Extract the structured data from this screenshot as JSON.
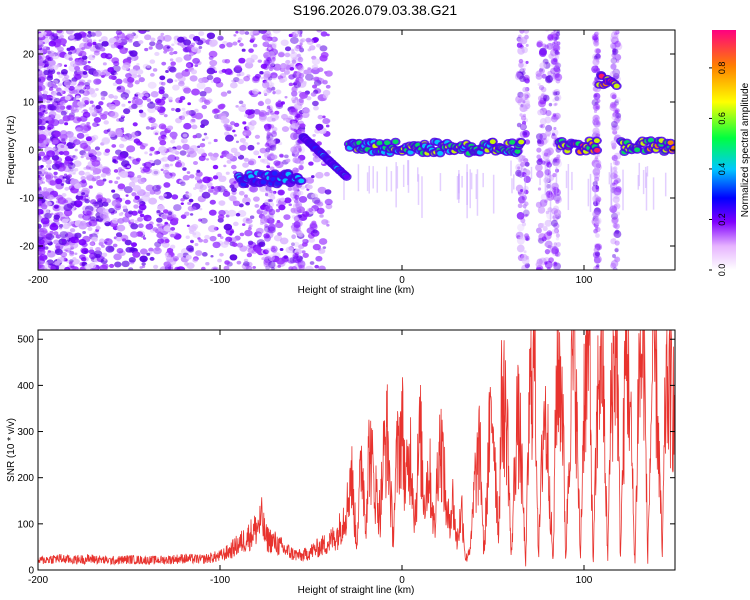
{
  "title": "S196.2026.079.03.38.G21",
  "chart_data": [
    {
      "type": "heatmap",
      "xlabel": "Height of straight line (km)",
      "ylabel": "Frequency (Hz)",
      "xlim": [
        -200,
        150
      ],
      "ylim": [
        -25,
        25
      ],
      "xticks": [
        -200,
        -100,
        0,
        100
      ],
      "yticks": [
        -20,
        -10,
        0,
        10,
        20
      ],
      "colorbar": {
        "label": "Normalized spectral amplitude",
        "range": [
          0,
          0.95
        ],
        "ticks": [
          0,
          0.2,
          0.4,
          0.6,
          0.8
        ]
      },
      "features": [
        {
          "x_start": -90,
          "x_end": -55,
          "freq": -6,
          "amplitude": 0.4
        },
        {
          "x_start": -55,
          "x_end": -30,
          "freq": 3,
          "amplitude": 0.35
        },
        {
          "x_start": -30,
          "x_end": 66,
          "freq": 0.5,
          "amplitude": 0.6
        },
        {
          "x_start": 86,
          "x_end": 108,
          "freq": 0.8,
          "amplitude": 0.9
        },
        {
          "x_start": 108,
          "x_end": 118,
          "freq": 14.5,
          "amplitude": 0.9
        },
        {
          "x_start": 120,
          "x_end": 150,
          "freq": 0.8,
          "amplitude": 0.8
        }
      ]
    },
    {
      "type": "line",
      "xlabel": "Height of straight line (km)",
      "ylabel": "SNR (10 * v/v)",
      "xlim": [
        -200,
        150
      ],
      "ylim": [
        0,
        520
      ],
      "xticks": [
        -200,
        -100,
        0,
        100
      ],
      "yticks": [
        0,
        100,
        200,
        300,
        400,
        500
      ],
      "color": "#e8332e",
      "series": [
        {
          "name": "SNR",
          "x": [
            -200,
            -190,
            -180,
            -170,
            -160,
            -150,
            -140,
            -130,
            -120,
            -110,
            -100,
            -95,
            -90,
            -85,
            -80,
            -77,
            -75,
            -70,
            -65,
            -60,
            -55,
            -50,
            -45,
            -40,
            -35,
            -30,
            -28,
            -25,
            -22,
            -20,
            -18,
            -15,
            -12,
            -10,
            -8,
            -5,
            -3,
            0,
            2,
            5,
            7,
            10,
            12,
            15,
            18,
            20,
            22,
            25,
            28,
            30,
            33,
            35,
            38,
            40,
            43,
            45,
            48,
            50,
            53,
            55,
            58,
            60,
            63,
            65,
            68,
            70,
            73,
            75,
            78,
            80,
            83,
            85,
            88,
            90,
            93,
            95,
            98,
            100,
            103,
            105,
            108,
            110,
            113,
            115,
            118,
            120,
            123,
            125,
            128,
            130,
            133,
            135,
            138,
            140,
            143,
            145,
            148,
            150
          ],
          "values": [
            20,
            25,
            22,
            24,
            20,
            23,
            21,
            22,
            25,
            23,
            30,
            40,
            55,
            70,
            90,
            110,
            70,
            60,
            45,
            35,
            30,
            40,
            50,
            60,
            80,
            140,
            220,
            60,
            250,
            100,
            270,
            180,
            120,
            250,
            290,
            70,
            230,
            320,
            180,
            260,
            110,
            300,
            150,
            220,
            80,
            270,
            260,
            100,
            150,
            60,
            130,
            20,
            60,
            190,
            260,
            30,
            280,
            350,
            80,
            390,
            300,
            20,
            330,
            280,
            10,
            360,
            480,
            30,
            350,
            280,
            10,
            440,
            400,
            20,
            420,
            470,
            20,
            380,
            500,
            10,
            430,
            490,
            20,
            380,
            510,
            30,
            470,
            400,
            10,
            420,
            480,
            20,
            500,
            390,
            30,
            410,
            380,
            350
          ]
        }
      ]
    }
  ]
}
